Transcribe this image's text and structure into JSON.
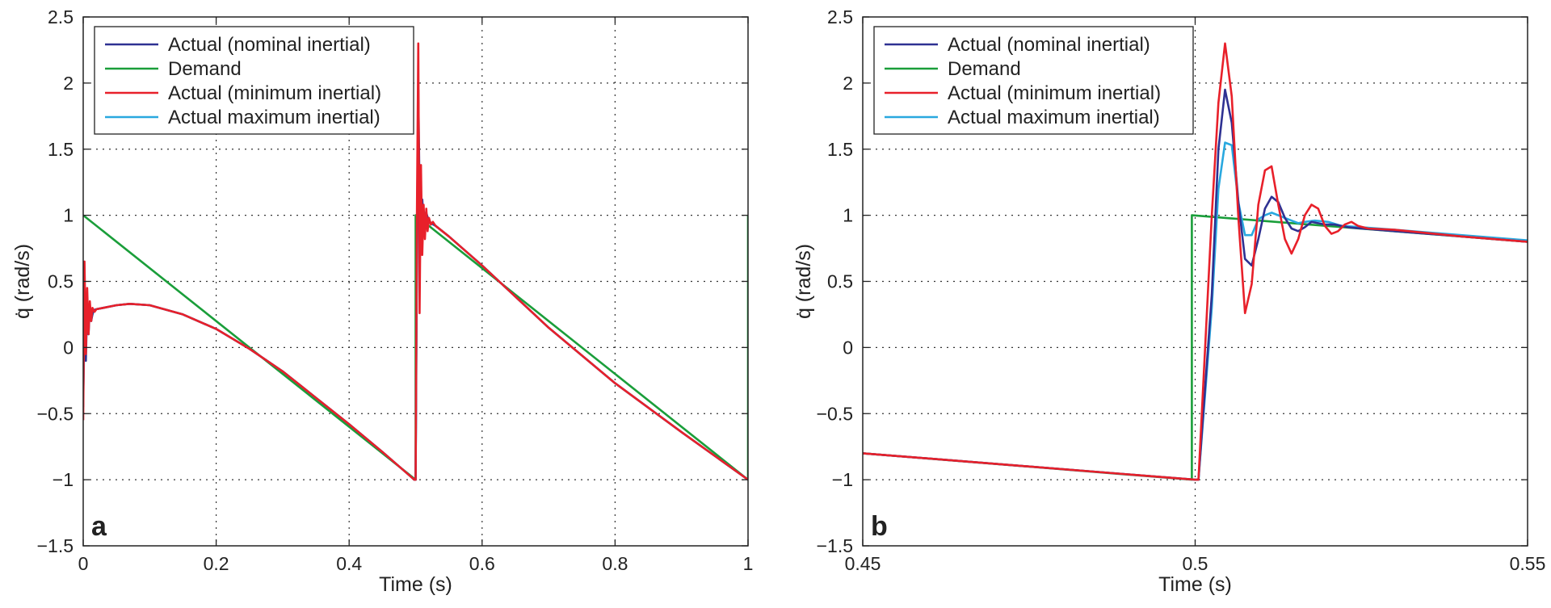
{
  "chart_data": [
    {
      "panel": "a",
      "type": "line",
      "xlabel": "Time (s)",
      "ylabel": "q̇ (rad/s)",
      "xlim": [
        0,
        1
      ],
      "ylim": [
        -1.5,
        2.5
      ],
      "xticks": [
        0,
        0.2,
        0.4,
        0.6,
        0.8,
        1
      ],
      "xtick_labels": [
        "0",
        "0.2",
        "0.4",
        "0.6",
        "0.8",
        "1"
      ],
      "yticks": [
        -1.5,
        -1,
        -0.5,
        0,
        0.5,
        1,
        1.5,
        2,
        2.5
      ],
      "ytick_labels": [
        "−1.5",
        "−1",
        "−0.5",
        "0",
        "0.5",
        "1",
        "1.5",
        "2",
        "2.5"
      ],
      "grid": "dotted",
      "legend_position": "top-left",
      "series": [
        {
          "name": "Actual (nominal inertial)",
          "color": "#2e3192",
          "x": [
            0,
            0.002,
            0.004,
            0.006,
            0.008,
            0.01,
            0.012,
            0.015,
            0.02,
            0.03,
            0.05,
            0.07,
            0.1,
            0.15,
            0.2,
            0.25,
            0.3,
            0.35,
            0.4,
            0.45,
            0.498,
            0.5,
            0.502,
            0.504,
            0.507,
            0.51,
            0.513,
            0.516,
            0.52,
            0.525,
            0.53,
            0.55,
            0.6,
            0.7,
            0.8,
            0.9,
            1.0
          ],
          "y": [
            -0.45,
            0.5,
            -0.1,
            0.35,
            0.1,
            0.3,
            0.2,
            0.28,
            0.29,
            0.3,
            0.32,
            0.33,
            0.32,
            0.25,
            0.14,
            -0.01,
            -0.18,
            -0.38,
            -0.58,
            -0.79,
            -1.0,
            -1.0,
            0.8,
            1.95,
            0.7,
            1.12,
            0.88,
            1.02,
            0.95,
            0.94,
            0.92,
            0.84,
            0.62,
            0.15,
            -0.27,
            -0.64,
            -1.0
          ]
        },
        {
          "name": "Demand",
          "color": "#1a9e3a",
          "x": [
            0,
            0.5,
            0.5,
            1.0,
            1.0
          ],
          "y": [
            1.0,
            -1.0,
            1.0,
            -1.0,
            1.0
          ]
        },
        {
          "name": "Actual (minimum inertial)",
          "color": "#e8202a",
          "x": [
            0,
            0.002,
            0.004,
            0.006,
            0.008,
            0.01,
            0.012,
            0.014,
            0.017,
            0.02,
            0.03,
            0.05,
            0.07,
            0.1,
            0.15,
            0.2,
            0.25,
            0.3,
            0.35,
            0.4,
            0.45,
            0.498,
            0.5,
            0.502,
            0.504,
            0.506,
            0.508,
            0.51,
            0.512,
            0.514,
            0.516,
            0.518,
            0.52,
            0.523,
            0.526,
            0.53,
            0.55,
            0.6,
            0.7,
            0.8,
            0.9,
            1.0
          ],
          "y": [
            -0.55,
            0.65,
            -0.05,
            0.45,
            0.1,
            0.35,
            0.2,
            0.3,
            0.27,
            0.29,
            0.3,
            0.32,
            0.33,
            0.32,
            0.25,
            0.14,
            -0.01,
            -0.18,
            -0.38,
            -0.58,
            -0.79,
            -1.0,
            -1.0,
            1.0,
            2.3,
            0.26,
            1.38,
            0.7,
            1.08,
            0.82,
            1.05,
            0.88,
            0.98,
            0.93,
            0.95,
            0.92,
            0.84,
            0.62,
            0.15,
            -0.27,
            -0.64,
            -1.0
          ]
        },
        {
          "name": "Actual maximum inertial)",
          "color": "#29a8df",
          "x": [
            0,
            0.003,
            0.006,
            0.009,
            0.012,
            0.016,
            0.02,
            0.03,
            0.05,
            0.07,
            0.1,
            0.15,
            0.2,
            0.25,
            0.3,
            0.35,
            0.4,
            0.45,
            0.498,
            0.5,
            0.502,
            0.504,
            0.507,
            0.51,
            0.514,
            0.518,
            0.522,
            0.526,
            0.53,
            0.55,
            0.6,
            0.7,
            0.8,
            0.9,
            1.0
          ],
          "y": [
            -0.35,
            0.35,
            0.1,
            0.3,
            0.22,
            0.28,
            0.29,
            0.3,
            0.32,
            0.33,
            0.32,
            0.25,
            0.14,
            -0.01,
            -0.18,
            -0.38,
            -0.58,
            -0.79,
            -1.0,
            -1.0,
            0.6,
            1.55,
            0.85,
            1.0,
            1.02,
            0.96,
            0.94,
            0.93,
            0.92,
            0.84,
            0.62,
            0.15,
            -0.27,
            -0.64,
            -1.0
          ]
        }
      ]
    },
    {
      "panel": "b",
      "type": "line",
      "xlabel": "Time (s)",
      "ylabel": "q̇ (rad/s)",
      "xlim": [
        0.45,
        0.55
      ],
      "ylim": [
        -1.5,
        2.5
      ],
      "xticks": [
        0.45,
        0.5,
        0.55
      ],
      "xtick_labels": [
        "0.45",
        "0.5",
        "0.55"
      ],
      "yticks": [
        -1.5,
        -1,
        -0.5,
        0,
        0.5,
        1,
        1.5,
        2,
        2.5
      ],
      "ytick_labels": [
        "−1.5",
        "−1",
        "−0.5",
        "0",
        "0.5",
        "1",
        "1.5",
        "2",
        "2.5"
      ],
      "grid": "dotted",
      "legend_position": "top-left",
      "series": [
        {
          "name": "Actual (nominal inertial)",
          "color": "#2e3192",
          "x": [
            0.45,
            0.5,
            0.5005,
            0.5025,
            0.5035,
            0.5045,
            0.5055,
            0.5065,
            0.5075,
            0.5085,
            0.5095,
            0.5105,
            0.5115,
            0.5125,
            0.5135,
            0.5145,
            0.5155,
            0.5165,
            0.5175,
            0.5185,
            0.5195,
            0.521,
            0.523,
            0.525,
            0.53,
            0.54,
            0.55
          ],
          "y": [
            -0.8,
            -1.0,
            -1.0,
            0.4,
            1.5,
            1.95,
            1.7,
            1.1,
            0.67,
            0.62,
            0.82,
            1.05,
            1.14,
            1.1,
            0.98,
            0.9,
            0.88,
            0.91,
            0.95,
            0.94,
            0.93,
            0.93,
            0.91,
            0.9,
            0.88,
            0.84,
            0.8
          ]
        },
        {
          "name": "Demand",
          "color": "#1a9e3a",
          "x": [
            0.45,
            0.4995,
            0.4995,
            0.55
          ],
          "y": [
            -0.8,
            -1.0,
            1.0,
            0.8
          ]
        },
        {
          "name": "Actual (minimum inertial)",
          "color": "#e8202a",
          "x": [
            0.45,
            0.5,
            0.5005,
            0.5025,
            0.5035,
            0.5045,
            0.5055,
            0.5065,
            0.5075,
            0.5085,
            0.5095,
            0.5105,
            0.5115,
            0.5125,
            0.5135,
            0.5145,
            0.5155,
            0.5165,
            0.5175,
            0.5185,
            0.5195,
            0.5205,
            0.5215,
            0.5225,
            0.5235,
            0.5245,
            0.526,
            0.53,
            0.54,
            0.55
          ],
          "y": [
            -0.8,
            -1.0,
            -1.0,
            1.0,
            1.85,
            2.3,
            1.9,
            0.98,
            0.26,
            0.48,
            1.08,
            1.34,
            1.37,
            1.08,
            0.82,
            0.71,
            0.82,
            1.0,
            1.08,
            1.05,
            0.92,
            0.86,
            0.88,
            0.93,
            0.95,
            0.92,
            0.9,
            0.89,
            0.84,
            0.8
          ]
        },
        {
          "name": "Actual maximum inertial)",
          "color": "#29a8df",
          "x": [
            0.45,
            0.5,
            0.5005,
            0.5025,
            0.5035,
            0.5045,
            0.5055,
            0.5065,
            0.5075,
            0.5085,
            0.5095,
            0.5105,
            0.5115,
            0.5125,
            0.5135,
            0.5145,
            0.5155,
            0.5165,
            0.518,
            0.52,
            0.522,
            0.525,
            0.53,
            0.54,
            0.55
          ],
          "y": [
            -0.8,
            -1.0,
            -1.0,
            0.3,
            1.2,
            1.55,
            1.53,
            1.1,
            0.85,
            0.85,
            0.97,
            1.0,
            1.02,
            1.0,
            0.98,
            0.96,
            0.94,
            0.95,
            0.96,
            0.95,
            0.92,
            0.91,
            0.89,
            0.85,
            0.81
          ]
        }
      ]
    }
  ]
}
